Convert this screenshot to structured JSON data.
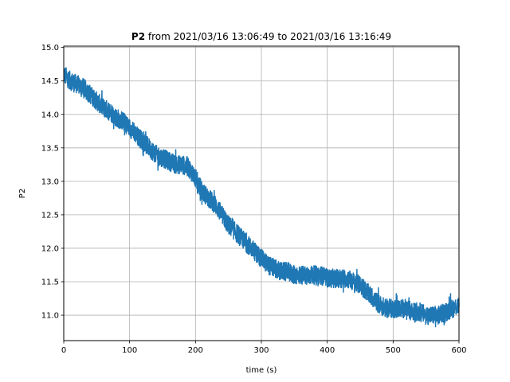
{
  "chart_data": {
    "type": "line",
    "title_bold": "P2",
    "title_rest": " from 2021/03/16 13:06:49 to 2021/03/16 13:16:49",
    "xlabel": "time (s)",
    "ylabel": "P2",
    "xlim": [
      0,
      600
    ],
    "ylim": [
      10.62,
      15.02
    ],
    "grid": true,
    "x_ticks": [
      0,
      100,
      200,
      300,
      400,
      500,
      600
    ],
    "x_tick_labels": [
      "0",
      "100",
      "200",
      "300",
      "400",
      "500",
      "600"
    ],
    "y_ticks": [
      11.0,
      11.5,
      12.0,
      12.5,
      13.0,
      13.5,
      14.0,
      14.5,
      15.0
    ],
    "y_tick_labels": [
      "11.0",
      "11.5",
      "12.0",
      "12.5",
      "13.0",
      "13.5",
      "14.0",
      "14.5",
      "15.0"
    ],
    "series": [
      {
        "color": "#1f77b4",
        "noise_band": 0.28,
        "x": [
          0,
          10,
          20,
          30,
          40,
          50,
          60,
          70,
          80,
          90,
          100,
          110,
          120,
          130,
          140,
          150,
          160,
          170,
          180,
          190,
          200,
          210,
          220,
          230,
          240,
          250,
          260,
          270,
          280,
          290,
          300,
          310,
          320,
          330,
          340,
          350,
          360,
          370,
          380,
          390,
          400,
          410,
          420,
          430,
          440,
          450,
          460,
          470,
          480,
          490,
          500,
          510,
          520,
          530,
          540,
          550,
          560,
          570,
          580,
          590,
          600
        ],
        "y": [
          14.6,
          14.5,
          14.45,
          14.4,
          14.3,
          14.2,
          14.1,
          14.05,
          13.95,
          13.9,
          13.8,
          13.7,
          13.6,
          13.5,
          13.4,
          13.35,
          13.3,
          13.25,
          13.25,
          13.2,
          13.05,
          12.85,
          12.75,
          12.65,
          12.5,
          12.35,
          12.25,
          12.15,
          12.05,
          11.95,
          11.85,
          11.75,
          11.7,
          11.65,
          11.65,
          11.6,
          11.6,
          11.6,
          11.6,
          11.6,
          11.55,
          11.55,
          11.55,
          11.55,
          11.5,
          11.45,
          11.35,
          11.25,
          11.15,
          11.1,
          11.1,
          11.1,
          11.1,
          11.05,
          11.05,
          11.0,
          11.0,
          11.0,
          11.05,
          11.1,
          11.15
        ]
      }
    ]
  }
}
